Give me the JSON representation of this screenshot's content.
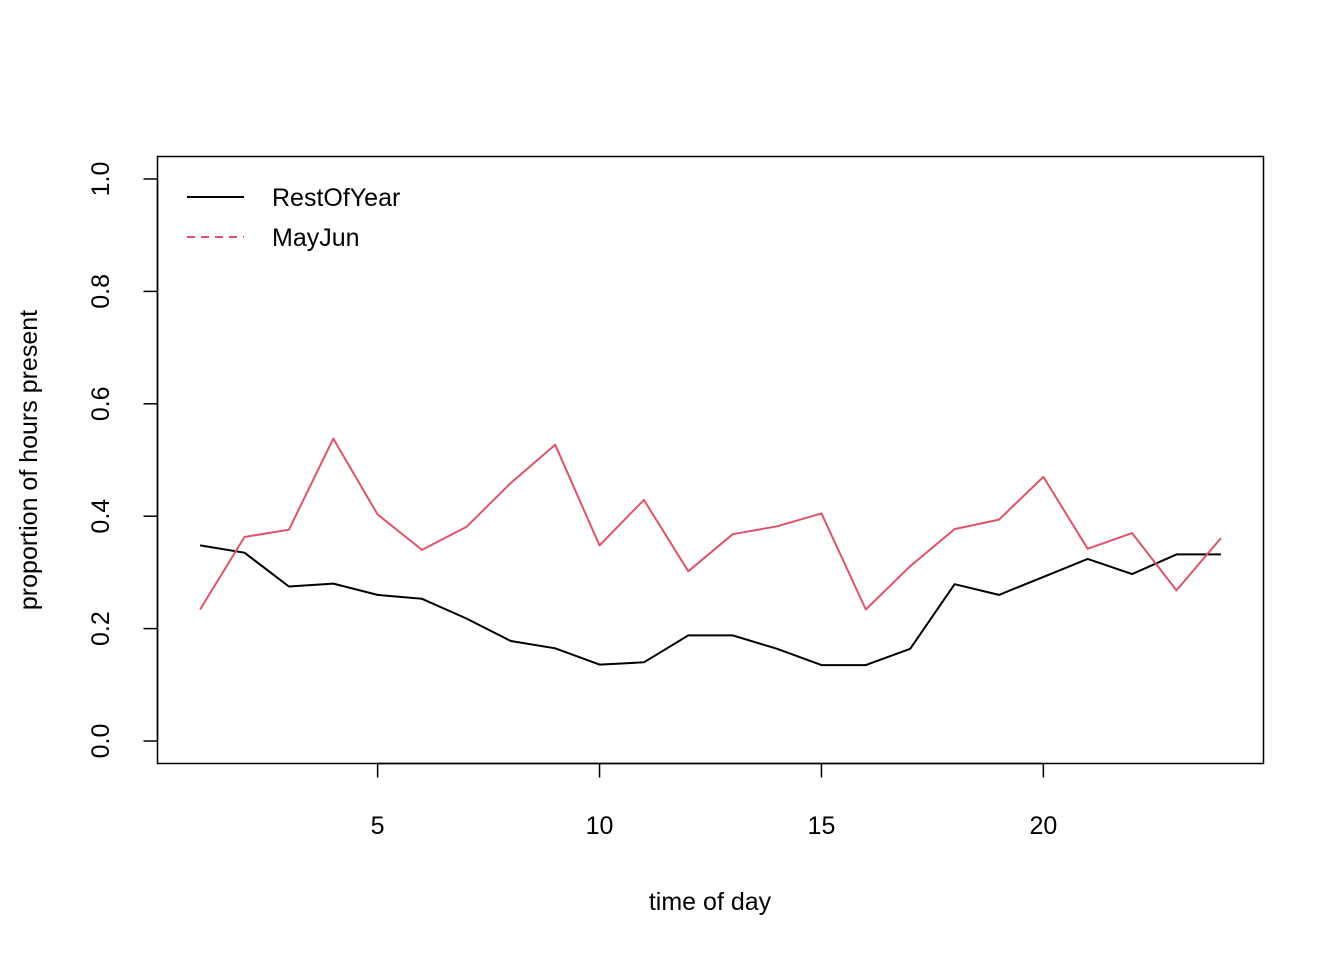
{
  "chart_data": {
    "type": "line",
    "xlabel": "time of day",
    "ylabel": "proportion of hours present",
    "xlim": [
      0.04,
      24.96
    ],
    "ylim": [
      -0.04,
      1.04
    ],
    "x_ticks": [
      5,
      10,
      15,
      20
    ],
    "y_ticks": [
      0.0,
      0.2,
      0.4,
      0.6,
      0.8,
      1.0
    ],
    "x_tick_labels": [
      "5",
      "10",
      "15",
      "20"
    ],
    "y_tick_labels": [
      "0.0",
      "0.2",
      "0.4",
      "0.6",
      "0.8",
      "1.0"
    ],
    "grid": false,
    "legend_position": "top-left",
    "x": [
      1,
      2,
      3,
      4,
      5,
      6,
      7,
      8,
      9,
      10,
      11,
      12,
      13,
      14,
      15,
      16,
      17,
      18,
      19,
      20,
      21,
      22,
      23,
      24
    ],
    "series": [
      {
        "name": "RestOfYear",
        "color": "#000000",
        "legend_dash": "solid",
        "values": [
          0.348,
          0.335,
          0.275,
          0.28,
          0.26,
          0.253,
          0.218,
          0.178,
          0.165,
          0.136,
          0.14,
          0.188,
          0.188,
          0.164,
          0.135,
          0.135,
          0.164,
          0.279,
          0.26,
          0.292,
          0.324,
          0.297,
          0.332,
          0.332
        ]
      },
      {
        "name": "MayJun",
        "color": "#DF536B",
        "legend_dash": "dashed",
        "values": [
          0.234,
          0.363,
          0.376,
          0.538,
          0.403,
          0.34,
          0.381,
          0.459,
          0.527,
          0.348,
          0.429,
          0.302,
          0.368,
          0.382,
          0.405,
          0.234,
          0.311,
          0.377,
          0.394,
          0.47,
          0.342,
          0.37,
          0.268,
          0.361
        ]
      }
    ]
  }
}
